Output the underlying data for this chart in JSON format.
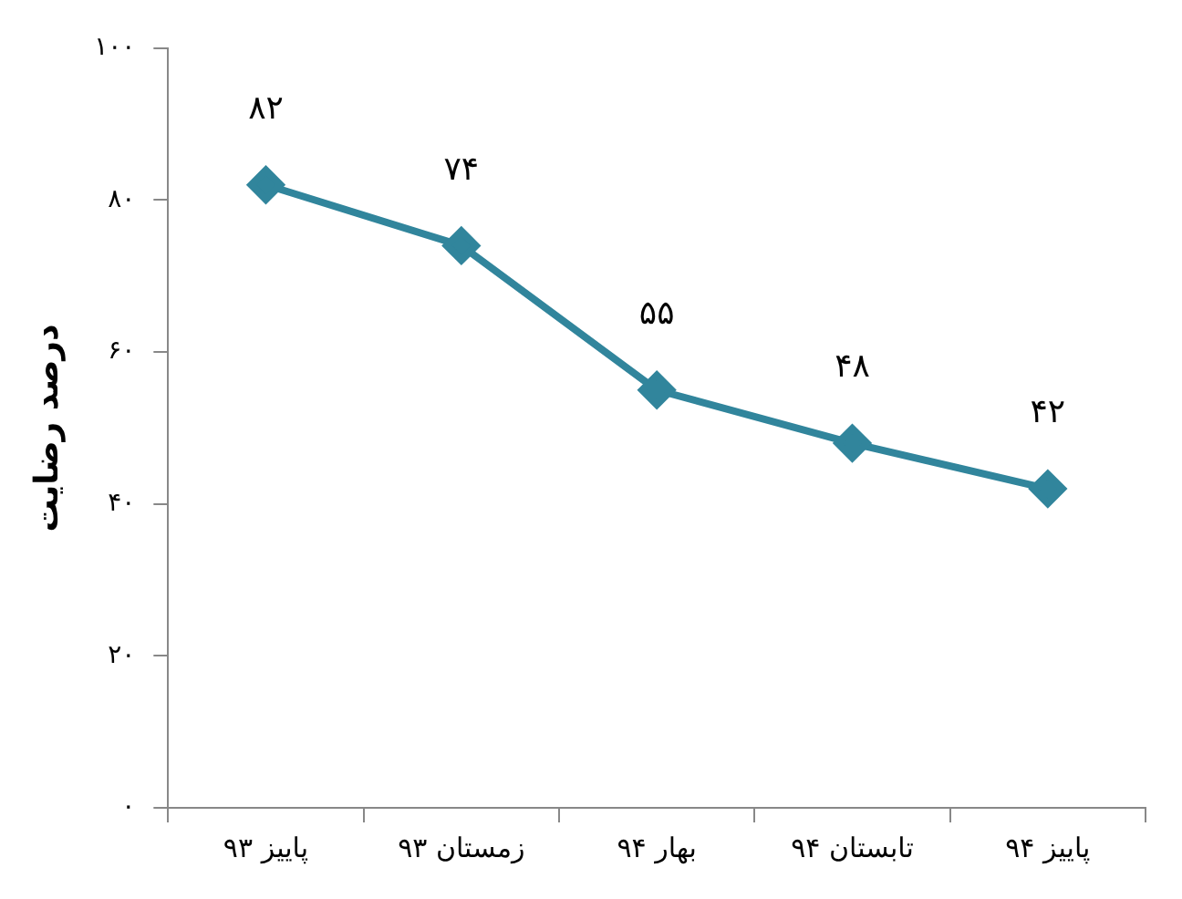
{
  "chart_data": {
    "type": "line",
    "ylabel": "درصد رضایت",
    "categories": [
      "پاییز ۹۳",
      "زمستان ۹۳",
      "بهار ۹۴",
      "تابستان ۹۴",
      "پاییز ۹۴"
    ],
    "series": [
      {
        "color": "#31859c",
        "values": [
          82,
          74,
          55,
          48,
          42
        ],
        "value_labels": [
          "۸۲",
          "۷۴",
          "۵۵",
          "۴۸",
          "۴۲"
        ]
      }
    ],
    "ylim": [
      0,
      100
    ],
    "yticks": [
      {
        "value": 0,
        "label": "۰"
      },
      {
        "value": 20,
        "label": "۲۰"
      },
      {
        "value": 40,
        "label": "۴۰"
      },
      {
        "value": 60,
        "label": "۶۰"
      },
      {
        "value": 80,
        "label": "۸۰"
      },
      {
        "value": 100,
        "label": "۱۰۰"
      }
    ],
    "grid": false,
    "legend": false,
    "marker": "diamond",
    "line_style": "solid"
  }
}
